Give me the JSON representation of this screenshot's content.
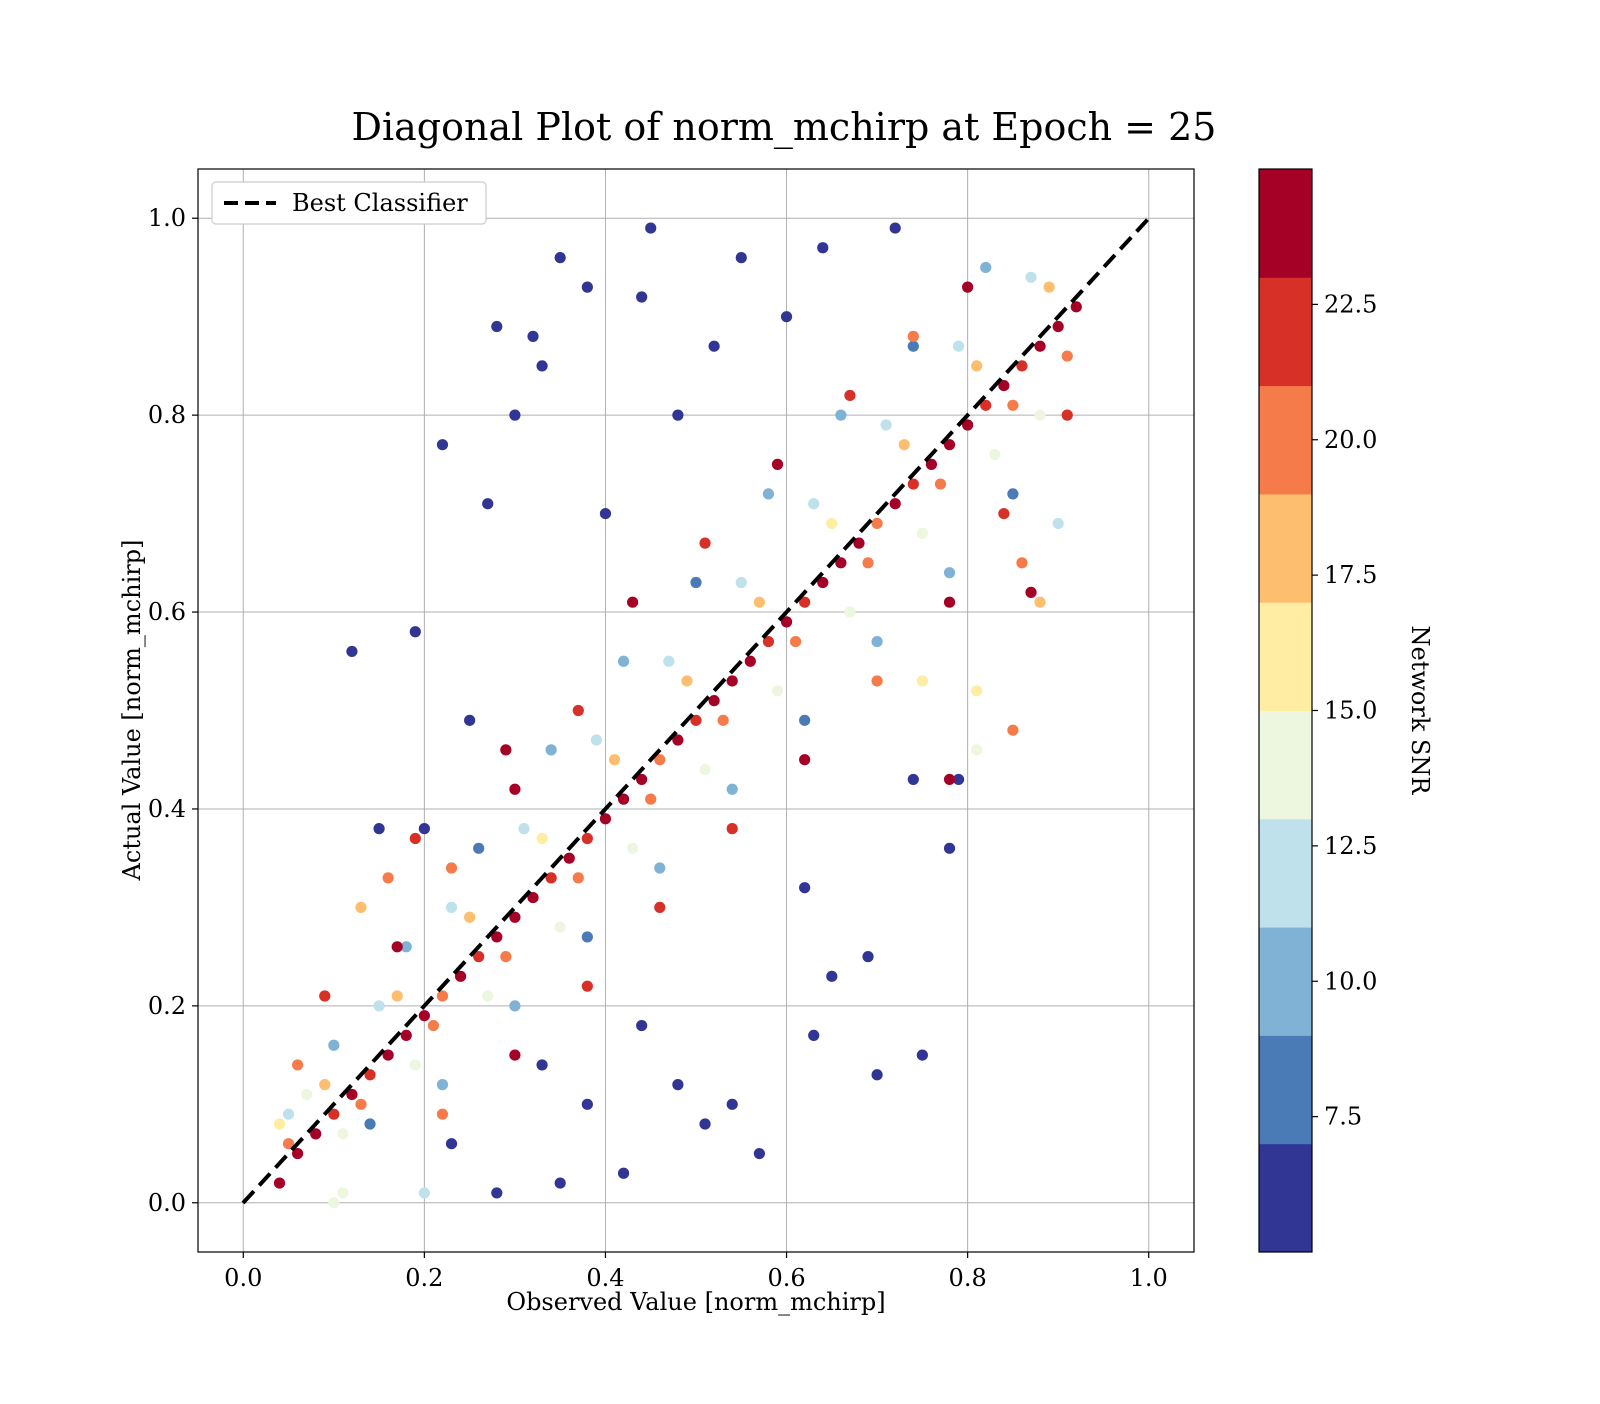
{
  "chart_data": {
    "type": "scatter",
    "title": "Diagonal Plot of norm_mchirp at Epoch = 25",
    "xlabel": "Observed Value [norm_mchirp]",
    "ylabel": "Actual Value [norm_mchirp]",
    "xlim": [
      -0.05,
      1.05
    ],
    "ylim": [
      -0.05,
      1.05
    ],
    "xticks": [
      "0.0",
      "0.2",
      "0.4",
      "0.6",
      "0.8",
      "1.0"
    ],
    "yticks": [
      "0.0",
      "0.2",
      "0.4",
      "0.6",
      "0.8",
      "1.0"
    ],
    "grid": true,
    "legend": {
      "placement": "upper-left",
      "entries": [
        "Best Classifier"
      ]
    },
    "reference_line": {
      "name": "Best Classifier",
      "style": "dashed",
      "color": "#000000",
      "x": [
        0.0,
        1.0
      ],
      "y": [
        0.0,
        1.0
      ]
    },
    "colorbar": {
      "label": "Network SNR",
      "range": [
        5.0,
        25.0
      ],
      "ticks": [
        "7.5",
        "10.0",
        "12.5",
        "15.0",
        "17.5",
        "20.0",
        "22.5"
      ],
      "tick_values": [
        7.5,
        10.0,
        12.5,
        15.0,
        17.5,
        20.0,
        22.5
      ],
      "colors": [
        "#313695",
        "#4a7bb7",
        "#7fb2d5",
        "#bfe1ec",
        "#edf7df",
        "#feeda2",
        "#fdbe6f",
        "#f57b4a",
        "#d73027",
        "#a50026"
      ]
    },
    "points": [
      [
        0.04,
        0.02,
        24
      ],
      [
        0.06,
        0.05,
        23
      ],
      [
        0.08,
        0.07,
        25
      ],
      [
        0.1,
        0.09,
        22
      ],
      [
        0.12,
        0.11,
        24
      ],
      [
        0.14,
        0.13,
        21
      ],
      [
        0.16,
        0.15,
        25
      ],
      [
        0.18,
        0.17,
        23
      ],
      [
        0.2,
        0.19,
        24
      ],
      [
        0.22,
        0.21,
        20
      ],
      [
        0.24,
        0.23,
        25
      ],
      [
        0.26,
        0.25,
        22
      ],
      [
        0.28,
        0.27,
        24
      ],
      [
        0.3,
        0.29,
        23
      ],
      [
        0.32,
        0.31,
        25
      ],
      [
        0.34,
        0.33,
        21
      ],
      [
        0.36,
        0.35,
        24
      ],
      [
        0.38,
        0.37,
        22
      ],
      [
        0.4,
        0.39,
        25
      ],
      [
        0.42,
        0.41,
        23
      ],
      [
        0.44,
        0.43,
        24
      ],
      [
        0.46,
        0.45,
        20
      ],
      [
        0.48,
        0.47,
        25
      ],
      [
        0.5,
        0.49,
        22
      ],
      [
        0.52,
        0.51,
        24
      ],
      [
        0.54,
        0.53,
        23
      ],
      [
        0.56,
        0.55,
        25
      ],
      [
        0.58,
        0.57,
        21
      ],
      [
        0.6,
        0.59,
        24
      ],
      [
        0.62,
        0.61,
        22
      ],
      [
        0.64,
        0.63,
        25
      ],
      [
        0.66,
        0.65,
        23
      ],
      [
        0.68,
        0.67,
        24
      ],
      [
        0.7,
        0.69,
        20
      ],
      [
        0.72,
        0.71,
        25
      ],
      [
        0.74,
        0.73,
        22
      ],
      [
        0.76,
        0.75,
        24
      ],
      [
        0.78,
        0.77,
        23
      ],
      [
        0.8,
        0.79,
        25
      ],
      [
        0.82,
        0.81,
        21
      ],
      [
        0.84,
        0.83,
        24
      ],
      [
        0.86,
        0.85,
        22
      ],
      [
        0.88,
        0.87,
        25
      ],
      [
        0.9,
        0.89,
        23
      ],
      [
        0.92,
        0.91,
        24
      ],
      [
        0.05,
        0.06,
        19
      ],
      [
        0.09,
        0.12,
        18
      ],
      [
        0.13,
        0.1,
        20
      ],
      [
        0.17,
        0.21,
        17
      ],
      [
        0.21,
        0.18,
        19
      ],
      [
        0.25,
        0.29,
        18
      ],
      [
        0.29,
        0.25,
        20
      ],
      [
        0.33,
        0.37,
        16
      ],
      [
        0.37,
        0.33,
        19
      ],
      [
        0.41,
        0.45,
        18
      ],
      [
        0.45,
        0.41,
        20
      ],
      [
        0.49,
        0.53,
        17
      ],
      [
        0.53,
        0.49,
        19
      ],
      [
        0.57,
        0.61,
        18
      ],
      [
        0.61,
        0.57,
        20
      ],
      [
        0.65,
        0.69,
        16
      ],
      [
        0.69,
        0.65,
        19
      ],
      [
        0.73,
        0.77,
        18
      ],
      [
        0.77,
        0.73,
        20
      ],
      [
        0.81,
        0.85,
        17
      ],
      [
        0.85,
        0.81,
        19
      ],
      [
        0.89,
        0.93,
        18
      ],
      [
        0.91,
        0.86,
        20
      ],
      [
        0.07,
        0.11,
        14
      ],
      [
        0.11,
        0.07,
        13
      ],
      [
        0.15,
        0.2,
        12
      ],
      [
        0.19,
        0.14,
        14
      ],
      [
        0.23,
        0.3,
        11
      ],
      [
        0.27,
        0.21,
        13
      ],
      [
        0.31,
        0.38,
        12
      ],
      [
        0.35,
        0.28,
        14
      ],
      [
        0.39,
        0.47,
        11
      ],
      [
        0.43,
        0.36,
        13
      ],
      [
        0.47,
        0.55,
        12
      ],
      [
        0.51,
        0.44,
        14
      ],
      [
        0.55,
        0.63,
        11
      ],
      [
        0.59,
        0.52,
        13
      ],
      [
        0.63,
        0.71,
        12
      ],
      [
        0.67,
        0.6,
        14
      ],
      [
        0.71,
        0.79,
        11
      ],
      [
        0.75,
        0.68,
        13
      ],
      [
        0.79,
        0.87,
        12
      ],
      [
        0.83,
        0.76,
        14
      ],
      [
        0.87,
        0.94,
        11
      ],
      [
        0.88,
        0.8,
        13
      ],
      [
        0.1,
        0.16,
        9
      ],
      [
        0.14,
        0.08,
        8
      ],
      [
        0.18,
        0.26,
        10
      ],
      [
        0.22,
        0.12,
        9
      ],
      [
        0.26,
        0.36,
        8
      ],
      [
        0.3,
        0.2,
        10
      ],
      [
        0.34,
        0.46,
        9
      ],
      [
        0.38,
        0.27,
        8
      ],
      [
        0.42,
        0.55,
        10
      ],
      [
        0.46,
        0.34,
        9
      ],
      [
        0.5,
        0.63,
        8
      ],
      [
        0.54,
        0.42,
        10
      ],
      [
        0.58,
        0.72,
        9
      ],
      [
        0.62,
        0.49,
        8
      ],
      [
        0.66,
        0.8,
        10
      ],
      [
        0.7,
        0.57,
        9
      ],
      [
        0.74,
        0.87,
        8
      ],
      [
        0.78,
        0.64,
        10
      ],
      [
        0.82,
        0.95,
        9
      ],
      [
        0.85,
        0.72,
        8
      ],
      [
        0.15,
        0.38,
        6
      ],
      [
        0.19,
        0.58,
        5
      ],
      [
        0.12,
        0.56,
        6
      ],
      [
        0.22,
        0.77,
        5
      ],
      [
        0.27,
        0.71,
        6
      ],
      [
        0.28,
        0.89,
        5
      ],
      [
        0.32,
        0.88,
        6
      ],
      [
        0.33,
        0.85,
        5
      ],
      [
        0.35,
        0.96,
        6
      ],
      [
        0.38,
        0.93,
        5
      ],
      [
        0.45,
        0.99,
        6
      ],
      [
        0.44,
        0.92,
        5
      ],
      [
        0.55,
        0.96,
        6
      ],
      [
        0.64,
        0.97,
        5
      ],
      [
        0.72,
        0.99,
        6
      ],
      [
        0.3,
        0.8,
        5
      ],
      [
        0.25,
        0.49,
        6
      ],
      [
        0.2,
        0.38,
        5
      ],
      [
        0.4,
        0.7,
        6
      ],
      [
        0.48,
        0.8,
        5
      ],
      [
        0.52,
        0.87,
        6
      ],
      [
        0.6,
        0.9,
        5
      ],
      [
        0.23,
        0.06,
        6
      ],
      [
        0.28,
        0.01,
        5
      ],
      [
        0.35,
        0.02,
        6
      ],
      [
        0.42,
        0.03,
        5
      ],
      [
        0.51,
        0.08,
        6
      ],
      [
        0.54,
        0.1,
        5
      ],
      [
        0.57,
        0.05,
        6
      ],
      [
        0.63,
        0.17,
        5
      ],
      [
        0.7,
        0.13,
        6
      ],
      [
        0.75,
        0.15,
        5
      ],
      [
        0.69,
        0.25,
        6
      ],
      [
        0.65,
        0.23,
        5
      ],
      [
        0.79,
        0.43,
        6
      ],
      [
        0.78,
        0.36,
        5
      ],
      [
        0.74,
        0.43,
        6
      ],
      [
        0.62,
        0.32,
        5
      ],
      [
        0.48,
        0.12,
        6
      ],
      [
        0.44,
        0.18,
        5
      ],
      [
        0.38,
        0.1,
        6
      ],
      [
        0.33,
        0.14,
        5
      ],
      [
        0.85,
        0.48,
        20
      ],
      [
        0.78,
        0.43,
        24
      ],
      [
        0.81,
        0.52,
        15
      ],
      [
        0.87,
        0.62,
        23
      ],
      [
        0.88,
        0.61,
        18
      ],
      [
        0.9,
        0.69,
        11
      ],
      [
        0.86,
        0.65,
        20
      ],
      [
        0.75,
        0.53,
        16
      ],
      [
        0.81,
        0.46,
        13
      ],
      [
        0.29,
        0.46,
        24
      ],
      [
        0.19,
        0.37,
        22
      ],
      [
        0.16,
        0.33,
        20
      ],
      [
        0.13,
        0.3,
        17
      ],
      [
        0.09,
        0.21,
        22
      ],
      [
        0.06,
        0.14,
        19
      ],
      [
        0.04,
        0.08,
        16
      ],
      [
        0.05,
        0.09,
        12
      ],
      [
        0.11,
        0.01,
        13
      ],
      [
        0.2,
        0.01,
        12
      ],
      [
        0.1,
        0.0,
        14
      ],
      [
        0.43,
        0.61,
        23
      ],
      [
        0.51,
        0.67,
        21
      ],
      [
        0.59,
        0.75,
        24
      ],
      [
        0.67,
        0.82,
        22
      ],
      [
        0.74,
        0.88,
        20
      ],
      [
        0.8,
        0.93,
        24
      ],
      [
        0.37,
        0.5,
        21
      ],
      [
        0.3,
        0.42,
        23
      ],
      [
        0.23,
        0.34,
        20
      ],
      [
        0.17,
        0.26,
        24
      ],
      [
        0.46,
        0.3,
        22
      ],
      [
        0.54,
        0.38,
        21
      ],
      [
        0.62,
        0.45,
        23
      ],
      [
        0.7,
        0.53,
        20
      ],
      [
        0.78,
        0.61,
        24
      ],
      [
        0.38,
        0.22,
        21
      ],
      [
        0.3,
        0.15,
        23
      ],
      [
        0.22,
        0.09,
        20
      ],
      [
        0.84,
        0.7,
        22
      ],
      [
        0.91,
        0.8,
        21
      ]
    ]
  }
}
